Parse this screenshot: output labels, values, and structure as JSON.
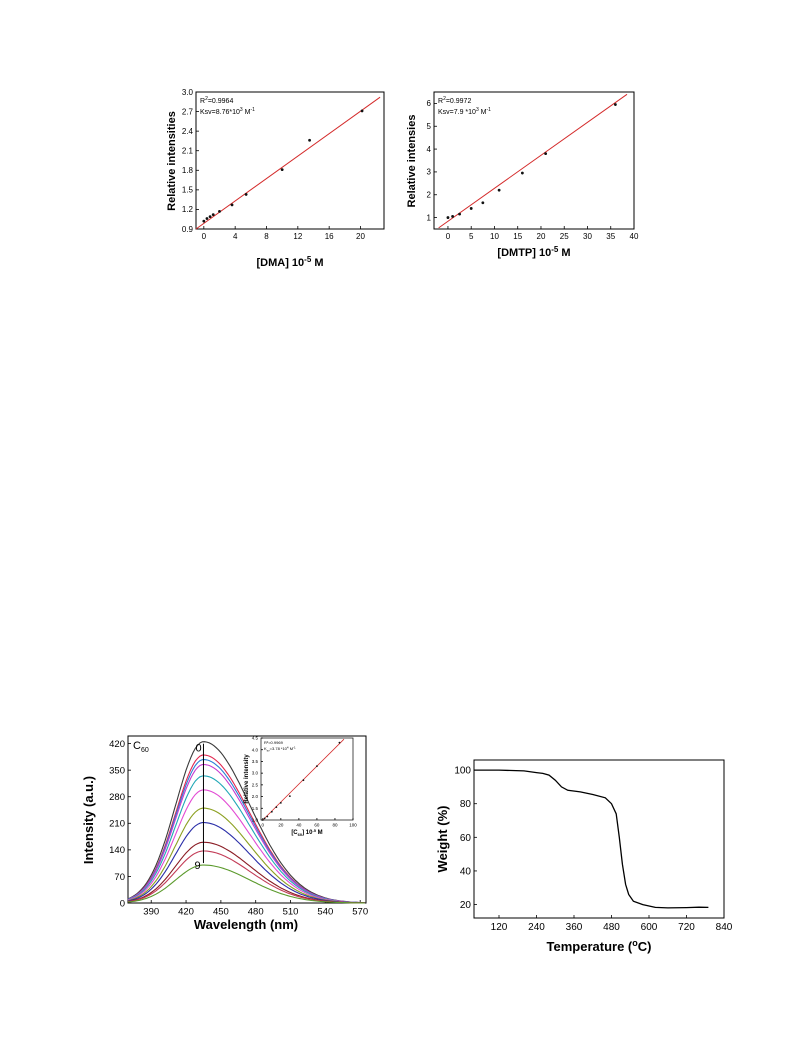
{
  "colors": {
    "fit": "#d42a2a",
    "point": "#111111",
    "axis": "#000000",
    "tga": "#000000"
  },
  "chart_data": [
    {
      "id": "dma",
      "type": "scatter",
      "xlabel": "[DMA] 10",
      "xlabel_sup": "-5",
      "xlabel_tail": " M",
      "ylabel": "Relative intensities",
      "xlim": [
        -1,
        23
      ],
      "ylim": [
        0.9,
        3.0
      ],
      "xticks": [
        "0",
        "4",
        "8",
        "12",
        "16",
        "20"
      ],
      "yticks": [
        "0.9",
        "1.2",
        "1.5",
        "1.8",
        "2.1",
        "2.4",
        "2.7",
        "3.0"
      ],
      "r2_label": "R",
      "r2_sup": "2",
      "r2_value": "=0.9964",
      "ksv_label": "Ksv=8.76*10",
      "ksv_sup": "3",
      "ksv_unit": " M",
      "ksv_unit_sup": "-1",
      "points": [
        [
          0,
          1.02
        ],
        [
          0.4,
          1.06
        ],
        [
          0.8,
          1.09
        ],
        [
          1.2,
          1.12
        ],
        [
          2,
          1.17
        ],
        [
          3.6,
          1.27
        ],
        [
          5.4,
          1.43
        ],
        [
          10,
          1.81
        ],
        [
          13.5,
          2.26
        ],
        [
          20.2,
          2.71
        ]
      ],
      "fit": [
        [
          -1,
          0.9
        ],
        [
          22.5,
          2.92
        ]
      ]
    },
    {
      "id": "dmtp",
      "type": "scatter",
      "xlabel": "[DMTP] 10",
      "xlabel_sup": "-5",
      "xlabel_tail": " M",
      "ylabel": "Relative intensies",
      "xlim": [
        -3,
        40
      ],
      "ylim": [
        0.5,
        6.5
      ],
      "xticks": [
        "0",
        "5",
        "10",
        "15",
        "20",
        "25",
        "30",
        "35",
        "40"
      ],
      "yticks": [
        "1",
        "2",
        "3",
        "4",
        "5",
        "6"
      ],
      "r2_label": "R",
      "r2_sup": "2",
      "r2_value": "=0.9972",
      "ksv_label": "Ksv=7.9 *10",
      "ksv_sup": "3",
      "ksv_unit": " M",
      "ksv_unit_sup": "-1",
      "points": [
        [
          0,
          1.0
        ],
        [
          1,
          1.05
        ],
        [
          2.5,
          1.15
        ],
        [
          5,
          1.4
        ],
        [
          7.5,
          1.65
        ],
        [
          11,
          2.2
        ],
        [
          16,
          2.95
        ],
        [
          21,
          3.8
        ],
        [
          36,
          5.95
        ]
      ],
      "fit": [
        [
          -2,
          0.55
        ],
        [
          38.5,
          6.4
        ]
      ]
    },
    {
      "id": "c60",
      "type": "line",
      "xlabel": "Wavelength (nm)",
      "ylabel": "Intensity (a.u.)",
      "corner_label": "C",
      "corner_sub": "60",
      "curve_top_label": "0",
      "curve_bottom_label": "9",
      "xlim": [
        370,
        575
      ],
      "ylim": [
        0,
        440
      ],
      "xticks": [
        "390",
        "420",
        "450",
        "480",
        "510",
        "540",
        "570"
      ],
      "yticks": [
        "0",
        "70",
        "140",
        "210",
        "280",
        "350",
        "420"
      ],
      "peak_x": 435,
      "series": [
        {
          "peak": 425,
          "color": "#3a3a3a"
        },
        {
          "peak": 390,
          "color": "#e2264f"
        },
        {
          "peak": 378,
          "color": "#2c7fd6"
        },
        {
          "peak": 365,
          "color": "#c63ad0"
        },
        {
          "peak": 335,
          "color": "#20a7b6"
        },
        {
          "peak": 298,
          "color": "#e24bd4"
        },
        {
          "peak": 250,
          "color": "#8ca021"
        },
        {
          "peak": 212,
          "color": "#2a2ea8"
        },
        {
          "peak": 160,
          "color": "#8a1c24"
        },
        {
          "peak": 137,
          "color": "#c33c57"
        },
        {
          "peak": 100,
          "color": "#5b9a2c"
        }
      ],
      "inset": {
        "type": "scatter",
        "xlabel": "[C",
        "xlabel_sub": "60",
        "xlabel_tail": "] 10",
        "xlabel_sup": "-5",
        "xlabel_end": " M",
        "ylabel": "Relative intensity",
        "r2_text": "R²=0.9969",
        "ksv_text": "K",
        "ksv_sub": "sv",
        "ksv_tail": "=3.78 *10",
        "ksv_sup": "4",
        "ksv_unit": " M",
        "ksv_unit_sup": "-1",
        "xlim": [
          -2,
          100
        ],
        "ylim": [
          1.0,
          4.5
        ],
        "xticks": [
          "0",
          "20",
          "40",
          "60",
          "80",
          "100"
        ],
        "yticks": [
          "1.0",
          "1.5",
          "2.0",
          "2.5",
          "3.0",
          "3.5",
          "4.0",
          "4.5"
        ],
        "points": [
          [
            0,
            1.0
          ],
          [
            2,
            1.07
          ],
          [
            5,
            1.15
          ],
          [
            10,
            1.35
          ],
          [
            15,
            1.55
          ],
          [
            20,
            1.73
          ],
          [
            30,
            2.02
          ],
          [
            45,
            2.7
          ],
          [
            60,
            3.3
          ],
          [
            85,
            4.3
          ]
        ],
        "fit": [
          [
            0,
            1.0
          ],
          [
            90,
            4.45
          ]
        ]
      }
    },
    {
      "id": "tga",
      "type": "line",
      "xlabel": "Temperature (",
      "xlabel_sup": "o",
      "xlabel_tail": "C)",
      "ylabel": "Weight (%)",
      "xlim": [
        40,
        840
      ],
      "ylim": [
        12,
        106
      ],
      "xticks": [
        "120",
        "240",
        "360",
        "480",
        "600",
        "720",
        "840"
      ],
      "yticks": [
        "20",
        "40",
        "60",
        "80",
        "100"
      ],
      "points": [
        [
          40,
          100
        ],
        [
          120,
          100
        ],
        [
          200,
          99.5
        ],
        [
          240,
          98.5
        ],
        [
          260,
          98
        ],
        [
          280,
          97
        ],
        [
          300,
          94
        ],
        [
          320,
          90
        ],
        [
          340,
          88
        ],
        [
          380,
          87
        ],
        [
          420,
          85.5
        ],
        [
          460,
          83.5
        ],
        [
          480,
          80
        ],
        [
          495,
          74
        ],
        [
          505,
          60
        ],
        [
          515,
          44
        ],
        [
          525,
          32
        ],
        [
          535,
          26
        ],
        [
          550,
          22
        ],
        [
          580,
          20
        ],
        [
          620,
          18.3
        ],
        [
          660,
          18
        ],
        [
          720,
          18.2
        ],
        [
          760,
          18.4
        ],
        [
          790,
          18.3
        ]
      ]
    }
  ]
}
